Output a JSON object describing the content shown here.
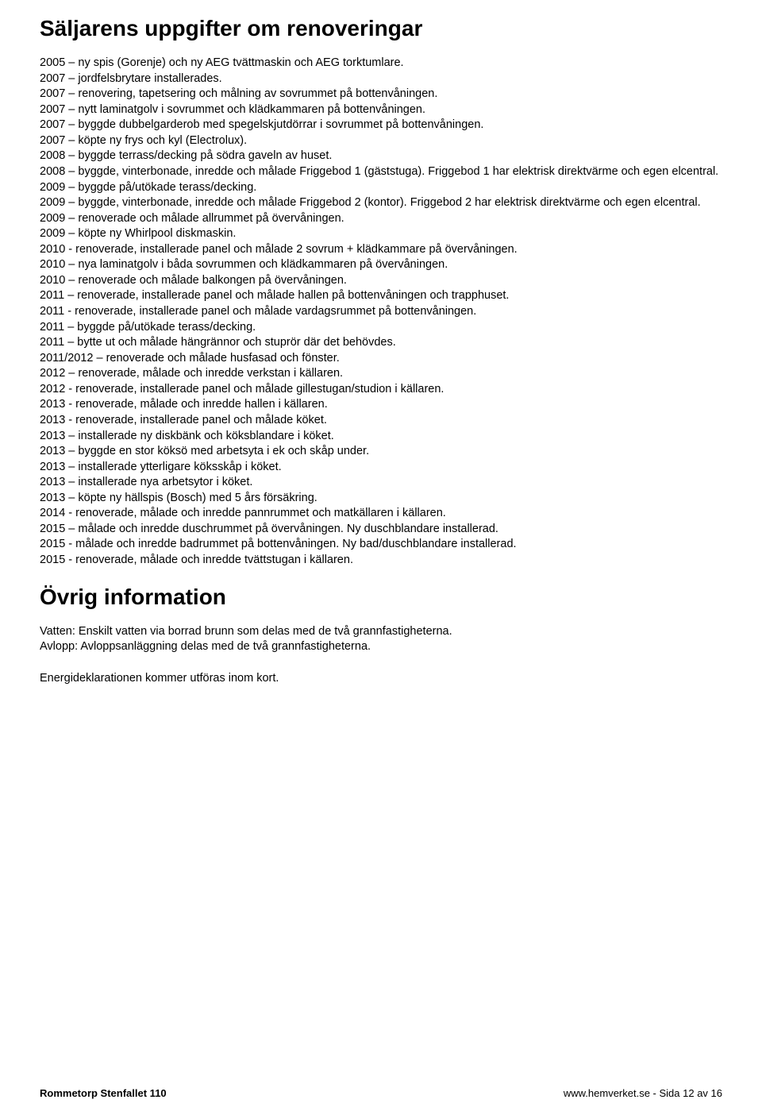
{
  "section1": {
    "title": "Säljarens uppgifter om renoveringar",
    "lines": [
      "2005 – ny spis (Gorenje) och ny AEG tvättmaskin och AEG torktumlare.",
      "2007 – jordfelsbrytare installerades.",
      "2007 – renovering, tapetsering och målning av sovrummet på bottenvåningen.",
      "2007 – nytt laminatgolv i sovrummet och klädkammaren på bottenvåningen.",
      "2007 – byggde dubbelgarderob med spegelskjutdörrar i sovrummet på bottenvåningen.",
      "2007 – köpte ny frys och kyl (Electrolux).",
      "2008 – byggde terrass/decking på södra gaveln av huset.",
      "2008 – byggde, vinterbonade, inredde och målade Friggebod 1 (gäststuga). Friggebod 1 har elektrisk direktvärme och egen elcentral.",
      "2009 – byggde på/utökade terass/decking.",
      "2009 – byggde, vinterbonade, inredde och målade Friggebod 2 (kontor). Friggebod 2 har elektrisk direktvärme och egen elcentral.",
      "2009 – renoverade och målade allrummet på övervåningen.",
      "2009 – köpte ny Whirlpool diskmaskin.",
      "2010 - renoverade, installerade panel och målade 2 sovrum + klädkammare på övervåningen.",
      "2010 – nya laminatgolv i båda sovrummen och klädkammaren på övervåningen.",
      "2010 – renoverade och målade balkongen på övervåningen.",
      "2011 – renoverade, installerade panel och målade hallen på bottenvåningen och trapphuset.",
      "2011 - renoverade, installerade panel och målade vardagsrummet på bottenvåningen.",
      "2011 – byggde på/utökade terass/decking.",
      "2011 – bytte ut och målade hängrännor och stuprör där det behövdes.",
      "2011/2012 – renoverade och målade husfasad och fönster.",
      "2012 – renoverade, målade och inredde verkstan i källaren.",
      "2012 - renoverade, installerade panel och målade gillestugan/studion i källaren.",
      "2013 - renoverade, målade och inredde hallen i källaren.",
      "2013 - renoverade, installerade panel och målade köket.",
      "2013 – installerade ny diskbänk och köksblandare i köket.",
      "2013 – byggde en stor köksö med arbetsyta i ek och skåp under.",
      "2013 – installerade ytterligare köksskåp i köket.",
      "2013 – installerade nya arbetsytor i köket.",
      "2013 – köpte ny hällspis (Bosch) med 5 års försäkring.",
      "2014 - renoverade, målade och inredde pannrummet och matkällaren i källaren.",
      "2015 – målade och inredde duschrummet på övervåningen. Ny duschblandare installerad.",
      "2015 - målade och inredde badrummet på bottenvåningen. Ny bad/duschblandare installerad.",
      "2015 - renoverade, målade och inredde tvättstugan i källaren."
    ]
  },
  "section2": {
    "title": "Övrig information",
    "paragraphs": [
      "Vatten: Enskilt vatten via borrad brunn som delas med de två grannfastigheterna.\nAvlopp: Avloppsanläggning delas med de två grannfastigheterna.",
      "Energideklarationen kommer utföras inom kort."
    ]
  },
  "footer": {
    "left": "Rommetorp Stenfallet 110",
    "right": "www.hemverket.se - Sida 12 av 16"
  }
}
